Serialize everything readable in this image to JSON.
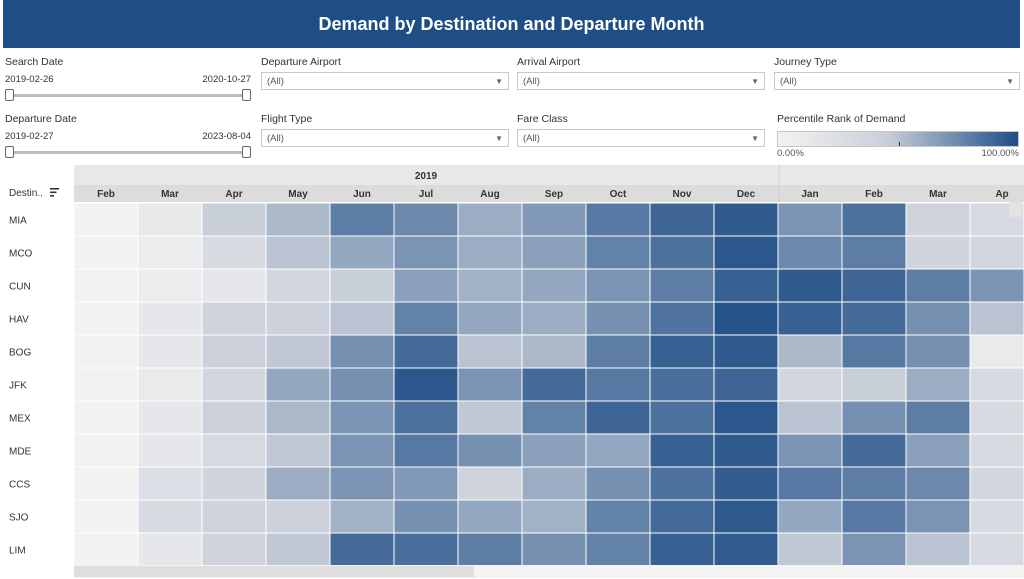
{
  "title": "Demand by Destination and Departure Month",
  "filters": {
    "search_date": {
      "label": "Search Date",
      "start": "2019-02-26",
      "end": "2020-10-27"
    },
    "departure_date": {
      "label": "Departure Date",
      "start": "2019-02-27",
      "end": "2023-08-04"
    },
    "departure_airport": {
      "label": "Departure Airport",
      "value": "(All)"
    },
    "arrival_airport": {
      "label": "Arrival Airport",
      "value": "(All)"
    },
    "journey_type": {
      "label": "Journey Type",
      "value": "(All)"
    },
    "flight_type": {
      "label": "Flight Type",
      "value": "(All)"
    },
    "fare_class": {
      "label": "Fare Class",
      "value": "(All)"
    },
    "percentile_legend": {
      "label": "Percentile Rank of Demand",
      "min": "0.00%",
      "max": "100.00%"
    }
  },
  "icons": {
    "dropdown": "chevron-down-icon",
    "sort": "sort-icon"
  },
  "colors": {
    "header": "#1f4e87",
    "low": "#f2f2f2",
    "high": "#1f4e87"
  },
  "chart_data": {
    "type": "heatmap",
    "title": "Demand by Destination and Departure Month",
    "row_header": "Destin..",
    "year_label": "2019",
    "columns": [
      "Feb",
      "Mar",
      "Apr",
      "May",
      "Jun",
      "Jul",
      "Aug",
      "Sep",
      "Oct",
      "Nov",
      "Dec",
      "Jan",
      "Feb",
      "Mar",
      "Ap"
    ],
    "rows": [
      "MIA",
      "MCO",
      "CUN",
      "HAV",
      "BOG",
      "JFK",
      "MEX",
      "MDE",
      "CCS",
      "SJO",
      "LIM"
    ],
    "values": [
      [
        0,
        12,
        45,
        55,
        80,
        75,
        60,
        68,
        82,
        90,
        95,
        70,
        85,
        40,
        30
      ],
      [
        0,
        8,
        28,
        50,
        62,
        70,
        60,
        65,
        78,
        85,
        96,
        75,
        80,
        38,
        35
      ],
      [
        0,
        8,
        14,
        35,
        45,
        65,
        58,
        62,
        70,
        80,
        92,
        95,
        90,
        80,
        70
      ],
      [
        0,
        14,
        40,
        42,
        50,
        78,
        62,
        60,
        72,
        84,
        98,
        92,
        88,
        72,
        50
      ],
      [
        0,
        14,
        42,
        48,
        72,
        88,
        50,
        55,
        80,
        92,
        95,
        55,
        82,
        72,
        10
      ],
      [
        0,
        10,
        35,
        62,
        72,
        96,
        70,
        88,
        82,
        86,
        90,
        35,
        45,
        60,
        30
      ],
      [
        0,
        14,
        42,
        55,
        70,
        85,
        48,
        78,
        90,
        85,
        96,
        50,
        72,
        80,
        30
      ],
      [
        0,
        14,
        32,
        48,
        70,
        82,
        72,
        65,
        62,
        92,
        95,
        70,
        88,
        65,
        32
      ],
      [
        0,
        24,
        38,
        60,
        70,
        68,
        40,
        60,
        72,
        85,
        94,
        82,
        80,
        75,
        35
      ],
      [
        0,
        28,
        40,
        42,
        58,
        72,
        62,
        58,
        78,
        88,
        95,
        62,
        82,
        70,
        30
      ],
      [
        0,
        14,
        40,
        48,
        88,
        86,
        80,
        72,
        78,
        92,
        94,
        48,
        70,
        50,
        32
      ]
    ],
    "value_range": [
      0,
      100
    ],
    "legend_placement": "top-right"
  }
}
